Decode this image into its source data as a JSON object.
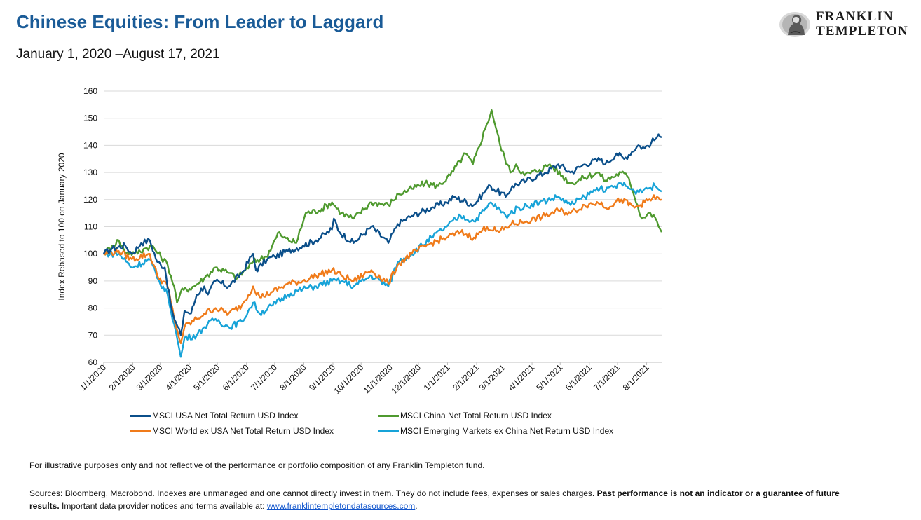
{
  "header": {
    "title": "Chinese Equities: From Leader to Laggard",
    "subtitle": "January 1, 2020 –August 17, 2021",
    "logo_line1": "FRANKLIN",
    "logo_line2": "TEMPLETON",
    "logo_icon": "benjamin-franklin-portrait-icon"
  },
  "footer": {
    "note": "For illustrative purposes only and not reflective of the performance or portfolio composition of any Franklin Templeton fund.",
    "sources_text": "Sources: Bloomberg, Macrobond. Indexes are unmanaged and one cannot directly invest in them. They do not include fees, expenses or sales charges. ",
    "sources_bold": "Past performance is not an indicator or a guarantee of future results.",
    "sources_tail": " Important data provider notices and terms available at: ",
    "sources_link": "www.franklintempletondatasources.com",
    "sources_end": "."
  },
  "chart_data": {
    "type": "line",
    "ylabel": "Index Rebased to 100 on January 2020",
    "xlabel": "",
    "ylim": [
      60,
      160
    ],
    "yticks": [
      60,
      70,
      80,
      90,
      100,
      110,
      120,
      130,
      140,
      150,
      160
    ],
    "xlim": [
      "2020-01-01",
      "2021-08-17"
    ],
    "xticks": [
      "2020-01-01",
      "2020-02-01",
      "2020-03-01",
      "2020-04-01",
      "2020-05-01",
      "2020-06-01",
      "2020-07-01",
      "2020-08-01",
      "2020-09-01",
      "2020-10-01",
      "2020-11-01",
      "2020-12-01",
      "2021-01-01",
      "2021-02-01",
      "2021-03-01",
      "2021-04-01",
      "2021-05-01",
      "2021-06-01",
      "2021-07-01",
      "2021-08-01"
    ],
    "xtick_labels": [
      "1/1/2020",
      "2/1/2020",
      "3/1/2020",
      "4/1/2020",
      "5/1/2020",
      "6/1/2020",
      "7/1/2020",
      "8/1/2020",
      "9/1/2020",
      "10/1/2020",
      "11/1/2020",
      "12/1/2020",
      "1/1/2021",
      "2/1/2021",
      "3/1/2021",
      "4/1/2021",
      "5/1/2021",
      "6/1/2021",
      "7/1/2021",
      "8/1/2021"
    ],
    "grid": "horizontal",
    "legend_position": "bottom",
    "series": [
      {
        "name": "MSCI USA Net Total Return USD Index",
        "color": "#0b4f8a",
        "points": [
          [
            "2020-01-01",
            100
          ],
          [
            "2020-01-10",
            102
          ],
          [
            "2020-01-24",
            103
          ],
          [
            "2020-01-31",
            100
          ],
          [
            "2020-02-10",
            104
          ],
          [
            "2020-02-19",
            105
          ],
          [
            "2020-02-27",
            97
          ],
          [
            "2020-03-06",
            95
          ],
          [
            "2020-03-12",
            82
          ],
          [
            "2020-03-16",
            76
          ],
          [
            "2020-03-23",
            70
          ],
          [
            "2020-03-27",
            79
          ],
          [
            "2020-04-03",
            78
          ],
          [
            "2020-04-09",
            85
          ],
          [
            "2020-04-17",
            88
          ],
          [
            "2020-04-21",
            85
          ],
          [
            "2020-04-29",
            90
          ],
          [
            "2020-05-13",
            88
          ],
          [
            "2020-05-27",
            93
          ],
          [
            "2020-06-08",
            100
          ],
          [
            "2020-06-11",
            94
          ],
          [
            "2020-06-23",
            98
          ],
          [
            "2020-07-01",
            99
          ],
          [
            "2020-07-15",
            101
          ],
          [
            "2020-07-31",
            103
          ],
          [
            "2020-08-14",
            105
          ],
          [
            "2020-08-31",
            109
          ],
          [
            "2020-09-02",
            113
          ],
          [
            "2020-09-08",
            108
          ],
          [
            "2020-09-23",
            104
          ],
          [
            "2020-10-12",
            110
          ],
          [
            "2020-10-30",
            104
          ],
          [
            "2020-11-09",
            111
          ],
          [
            "2020-11-24",
            114
          ],
          [
            "2020-12-15",
            117
          ],
          [
            "2020-12-31",
            119
          ],
          [
            "2021-01-08",
            121
          ],
          [
            "2021-01-29",
            118
          ],
          [
            "2021-02-12",
            124
          ],
          [
            "2021-02-16",
            125
          ],
          [
            "2021-03-04",
            121
          ],
          [
            "2021-03-11",
            125
          ],
          [
            "2021-03-26",
            127
          ],
          [
            "2021-04-15",
            130
          ],
          [
            "2021-04-29",
            133
          ],
          [
            "2021-05-12",
            130
          ],
          [
            "2021-05-27",
            133
          ],
          [
            "2021-06-14",
            135
          ],
          [
            "2021-06-18",
            133
          ],
          [
            "2021-06-30",
            137
          ],
          [
            "2021-07-08",
            135
          ],
          [
            "2021-07-23",
            140
          ],
          [
            "2021-07-30",
            139
          ],
          [
            "2021-08-06",
            141
          ],
          [
            "2021-08-12",
            143
          ],
          [
            "2021-08-17",
            143
          ]
        ]
      },
      {
        "name": "MSCI China Net Total Return USD Index",
        "color": "#4f9a2f",
        "points": [
          [
            "2020-01-01",
            100
          ],
          [
            "2020-01-10",
            103
          ],
          [
            "2020-01-17",
            105
          ],
          [
            "2020-01-23",
            101
          ],
          [
            "2020-02-03",
            100
          ],
          [
            "2020-02-14",
            102
          ],
          [
            "2020-02-21",
            103
          ],
          [
            "2020-03-09",
            96
          ],
          [
            "2020-03-16",
            88
          ],
          [
            "2020-03-19",
            82
          ],
          [
            "2020-03-23",
            86
          ],
          [
            "2020-04-06",
            88
          ],
          [
            "2020-04-17",
            91
          ],
          [
            "2020-04-29",
            95
          ],
          [
            "2020-05-13",
            93
          ],
          [
            "2020-05-22",
            91
          ],
          [
            "2020-06-08",
            97
          ],
          [
            "2020-06-22",
            99
          ],
          [
            "2020-07-06",
            108
          ],
          [
            "2020-07-10",
            106
          ],
          [
            "2020-07-24",
            104
          ],
          [
            "2020-08-03",
            115
          ],
          [
            "2020-08-17",
            116
          ],
          [
            "2020-08-31",
            119
          ],
          [
            "2020-09-10",
            115
          ],
          [
            "2020-09-23",
            113
          ],
          [
            "2020-10-12",
            119
          ],
          [
            "2020-10-30",
            118
          ],
          [
            "2020-11-10",
            122
          ],
          [
            "2020-11-24",
            124
          ],
          [
            "2020-12-08",
            126
          ],
          [
            "2020-12-22",
            125
          ],
          [
            "2021-01-04",
            129
          ],
          [
            "2021-01-20",
            137
          ],
          [
            "2021-01-28",
            133
          ],
          [
            "2021-02-10",
            146
          ],
          [
            "2021-02-17",
            153
          ],
          [
            "2021-02-26",
            140
          ],
          [
            "2021-03-09",
            130
          ],
          [
            "2021-03-15",
            133
          ],
          [
            "2021-03-24",
            129
          ],
          [
            "2021-04-09",
            131
          ],
          [
            "2021-04-20",
            133
          ],
          [
            "2021-05-12",
            126
          ],
          [
            "2021-05-26",
            128
          ],
          [
            "2021-06-10",
            130
          ],
          [
            "2021-06-18",
            127
          ],
          [
            "2021-07-05",
            130
          ],
          [
            "2021-07-13",
            128
          ],
          [
            "2021-07-27",
            113
          ],
          [
            "2021-08-05",
            115
          ],
          [
            "2021-08-12",
            112
          ],
          [
            "2021-08-17",
            108
          ]
        ]
      },
      {
        "name": "MSCI World ex USA Net Total Return USD Index",
        "color": "#f07b1a",
        "points": [
          [
            "2020-01-01",
            100
          ],
          [
            "2020-01-17",
            101
          ],
          [
            "2020-01-31",
            98
          ],
          [
            "2020-02-19",
            100
          ],
          [
            "2020-02-27",
            92
          ],
          [
            "2020-03-09",
            88
          ],
          [
            "2020-03-16",
            76
          ],
          [
            "2020-03-23",
            67
          ],
          [
            "2020-03-27",
            73
          ],
          [
            "2020-04-09",
            76
          ],
          [
            "2020-04-17",
            78
          ],
          [
            "2020-04-29",
            80
          ],
          [
            "2020-05-13",
            78
          ],
          [
            "2020-05-27",
            81
          ],
          [
            "2020-06-08",
            88
          ],
          [
            "2020-06-15",
            84
          ],
          [
            "2020-06-29",
            86
          ],
          [
            "2020-07-15",
            89
          ],
          [
            "2020-07-31",
            90
          ],
          [
            "2020-08-14",
            92
          ],
          [
            "2020-08-31",
            94
          ],
          [
            "2020-09-10",
            92
          ],
          [
            "2020-09-23",
            90
          ],
          [
            "2020-10-12",
            94
          ],
          [
            "2020-10-30",
            89
          ],
          [
            "2020-11-09",
            96
          ],
          [
            "2020-11-24",
            100
          ],
          [
            "2020-12-15",
            104
          ],
          [
            "2020-12-31",
            106
          ],
          [
            "2021-01-15",
            108
          ],
          [
            "2021-01-29",
            106
          ],
          [
            "2021-02-12",
            110
          ],
          [
            "2021-02-25",
            108
          ],
          [
            "2021-03-10",
            111
          ],
          [
            "2021-03-26",
            112
          ],
          [
            "2021-04-15",
            114
          ],
          [
            "2021-04-29",
            116
          ],
          [
            "2021-05-12",
            115
          ],
          [
            "2021-05-27",
            118
          ],
          [
            "2021-06-14",
            119
          ],
          [
            "2021-06-18",
            117
          ],
          [
            "2021-07-05",
            120
          ],
          [
            "2021-07-19",
            117
          ],
          [
            "2021-07-30",
            119
          ],
          [
            "2021-08-12",
            121
          ],
          [
            "2021-08-17",
            120
          ]
        ]
      },
      {
        "name": "MSCI Emerging Markets ex China Net Return USD Index",
        "color": "#17a3d8",
        "points": [
          [
            "2020-01-01",
            100
          ],
          [
            "2020-01-17",
            100
          ],
          [
            "2020-01-31",
            95
          ],
          [
            "2020-02-19",
            98
          ],
          [
            "2020-02-27",
            91
          ],
          [
            "2020-03-09",
            85
          ],
          [
            "2020-03-16",
            74
          ],
          [
            "2020-03-23",
            62
          ],
          [
            "2020-03-27",
            69
          ],
          [
            "2020-04-09",
            70
          ],
          [
            "2020-04-17",
            73
          ],
          [
            "2020-04-29",
            76
          ],
          [
            "2020-05-13",
            73
          ],
          [
            "2020-05-27",
            75
          ],
          [
            "2020-06-08",
            82
          ],
          [
            "2020-06-15",
            78
          ],
          [
            "2020-06-29",
            81
          ],
          [
            "2020-07-15",
            85
          ],
          [
            "2020-07-31",
            87
          ],
          [
            "2020-08-14",
            88
          ],
          [
            "2020-08-31",
            90
          ],
          [
            "2020-09-10",
            90
          ],
          [
            "2020-09-23",
            88
          ],
          [
            "2020-10-12",
            92
          ],
          [
            "2020-10-30",
            88
          ],
          [
            "2020-11-09",
            97
          ],
          [
            "2020-11-24",
            100
          ],
          [
            "2020-12-15",
            106
          ],
          [
            "2020-12-31",
            110
          ],
          [
            "2021-01-15",
            114
          ],
          [
            "2021-01-29",
            112
          ],
          [
            "2021-02-12",
            117
          ],
          [
            "2021-02-16",
            119
          ],
          [
            "2021-03-04",
            114
          ],
          [
            "2021-03-18",
            117
          ],
          [
            "2021-04-09",
            119
          ],
          [
            "2021-04-29",
            121
          ],
          [
            "2021-05-12",
            118
          ],
          [
            "2021-05-27",
            121
          ],
          [
            "2021-06-14",
            125
          ],
          [
            "2021-06-18",
            123
          ],
          [
            "2021-07-05",
            126
          ],
          [
            "2021-07-19",
            123
          ],
          [
            "2021-07-30",
            124
          ],
          [
            "2021-08-10",
            125
          ],
          [
            "2021-08-17",
            123
          ]
        ]
      }
    ]
  }
}
